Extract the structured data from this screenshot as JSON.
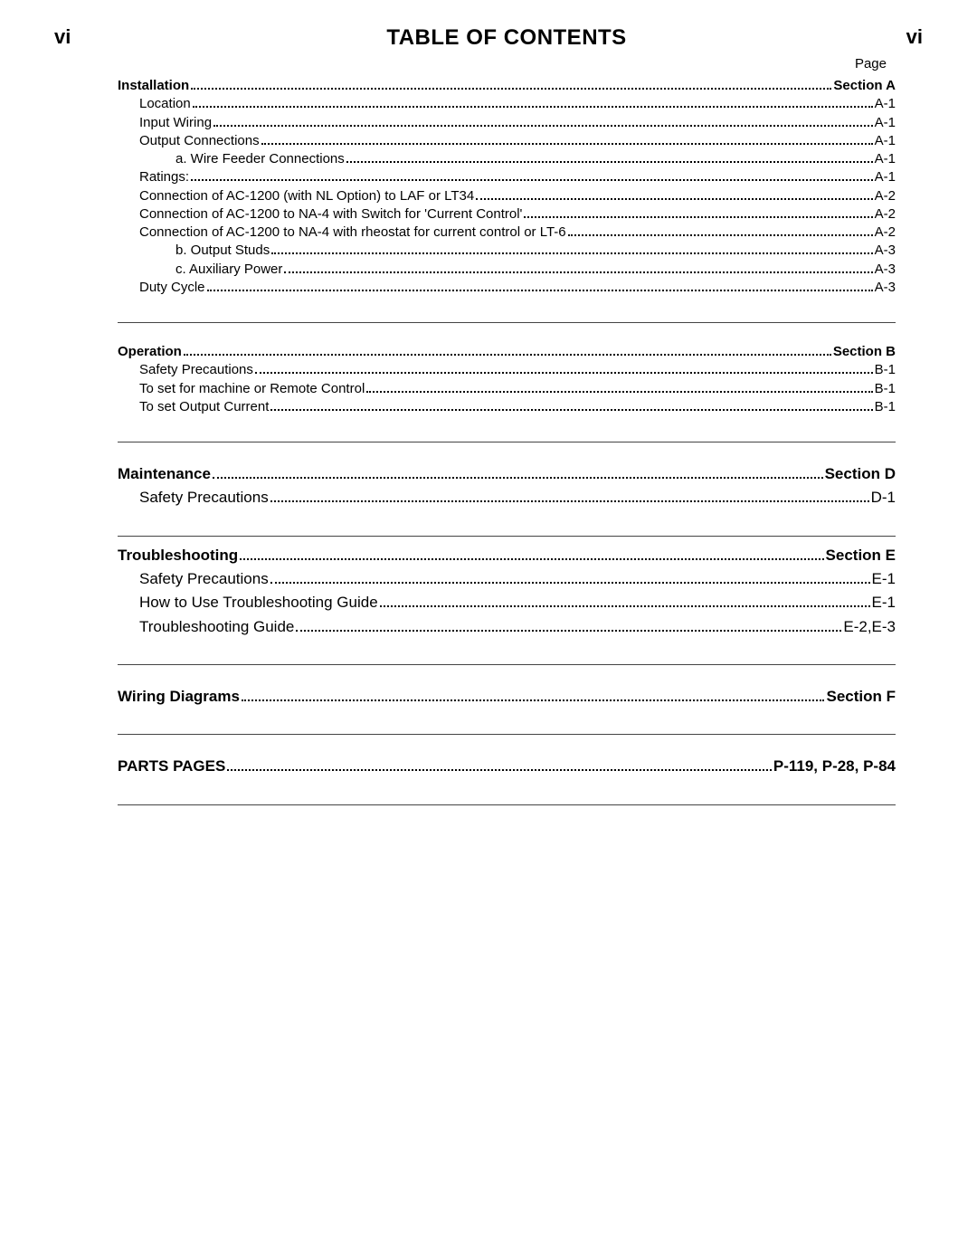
{
  "pageNumLeft": "vi",
  "pageNumRight": "vi",
  "title": "TABLE OF CONTENTS",
  "pageLabel": "Page",
  "sections": [
    {
      "sep": "none",
      "size": "sm",
      "entries": [
        {
          "label": "Installation",
          "page": "Section A",
          "indent": 0,
          "bold": true
        },
        {
          "label": "Location ",
          "page": "A-1",
          "indent": 1
        },
        {
          "label": "Input Wiring ",
          "page": "A-1",
          "indent": 1
        },
        {
          "label": "Output Connections",
          "page": "A-1",
          "indent": 1
        },
        {
          "label": "a. Wire Feeder Connections ",
          "page": "A-1",
          "indent": 2
        },
        {
          "label": "Ratings: ",
          "page": "A-1",
          "indent": 1
        },
        {
          "label": "Connection of AC-1200 (with NL Option) to LAF or LT34 ",
          "page": "A-2",
          "indent": 1
        },
        {
          "label": "Connection of AC-1200 to NA-4 with Switch for 'Current Control' ",
          "page": "A-2",
          "indent": 1
        },
        {
          "label": "Connection of AC-1200 to NA-4 with rheostat for current control or LT-6",
          "page": "A-2",
          "indent": 1
        },
        {
          "label": "b. Output Studs ",
          "page": "A-3",
          "indent": 2
        },
        {
          "label": "c. Auxiliary Power",
          "page": "A-3",
          "indent": 2
        },
        {
          "label": "Duty Cycle ",
          "page": "A-3",
          "indent": 1
        }
      ]
    },
    {
      "sep": "top",
      "size": "sm",
      "entries": [
        {
          "label": "Operation",
          "page": "Section B",
          "indent": 0,
          "bold": true
        },
        {
          "label": "Safety Precautions ",
          "page": "B-1",
          "indent": 1
        },
        {
          "label": "To set for machine or Remote Control ",
          "page": "B-1",
          "indent": 1
        },
        {
          "label": "To set Output Current",
          "page": "B-1",
          "indent": 1
        }
      ]
    },
    {
      "sep": "both",
      "size": "lg",
      "entries": [
        {
          "label": "Maintenance ",
          "page": "Section D",
          "indent": 0,
          "bold": true
        },
        {
          "label": "Safety Precautions ",
          "page": "D-1",
          "indent": 1
        }
      ]
    },
    {
      "sep": "bottom",
      "size": "lg",
      "entries": [
        {
          "label": "Troubleshooting ",
          "page": "Section E",
          "indent": 0,
          "bold": true
        },
        {
          "label": "Safety Precautions",
          "page": "E-1",
          "indent": 1
        },
        {
          "label": "How to Use Troubleshooting Guide",
          "page": "E-1",
          "indent": 1
        },
        {
          "label": "Troubleshooting Guide",
          "page": "E-2,E-3",
          "indent": 1
        }
      ]
    },
    {
      "sep": "bottom",
      "size": "lg",
      "entries": [
        {
          "label": "Wiring Diagrams ",
          "page": "Section F",
          "indent": 0,
          "bold": true
        }
      ]
    },
    {
      "sep": "bottom",
      "size": "lg",
      "entries": [
        {
          "label": "PARTS PAGES ",
          "page": " P-119, P-28, P-84",
          "indent": 0,
          "bold": true
        }
      ]
    }
  ]
}
